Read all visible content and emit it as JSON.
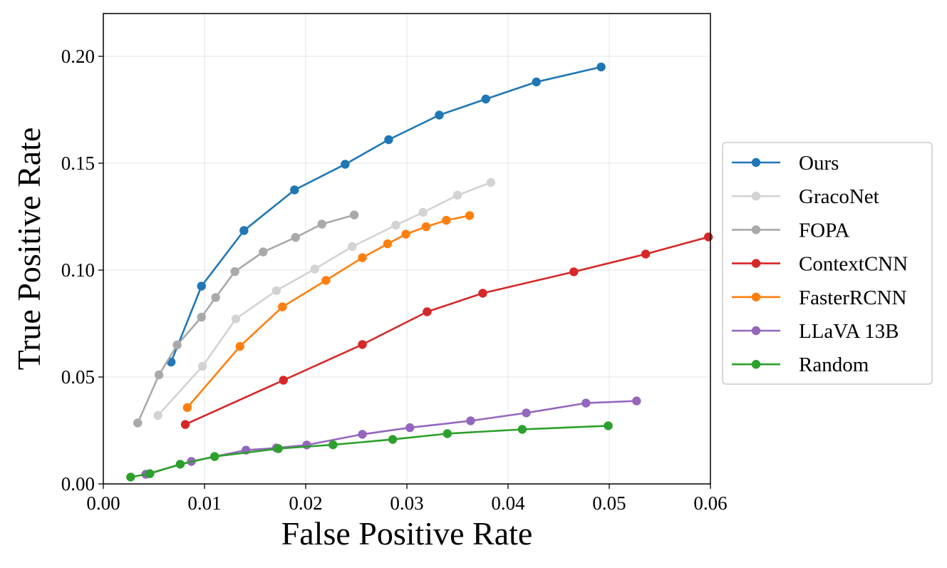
{
  "chart_data": {
    "type": "line",
    "title": "",
    "xlabel": "False Positive Rate",
    "ylabel": "True Positive Rate",
    "xlim": [
      0.0,
      0.06
    ],
    "ylim": [
      0.0,
      0.22
    ],
    "grid": true,
    "legend_position": "right-outside",
    "x_ticks": [
      0.0,
      0.01,
      0.02,
      0.03,
      0.04,
      0.05,
      0.06
    ],
    "x_tick_labels": [
      "0.00",
      "0.01",
      "0.02",
      "0.03",
      "0.04",
      "0.05",
      "0.06"
    ],
    "y_ticks": [
      0.0,
      0.05,
      0.1,
      0.15,
      0.2
    ],
    "y_tick_labels": [
      "0.00",
      "0.05",
      "0.10",
      "0.15",
      "0.20"
    ],
    "series": [
      {
        "name": "Ours",
        "color": "#1f77b4",
        "x": [
          0.0067,
          0.0097,
          0.0139,
          0.0189,
          0.0239,
          0.0282,
          0.0332,
          0.0378,
          0.0428,
          0.0492
        ],
        "y": [
          0.057,
          0.0925,
          0.1185,
          0.1375,
          0.1495,
          0.161,
          0.1725,
          0.18,
          0.188,
          0.195
        ]
      },
      {
        "name": "GracoNet",
        "color": "#d3d3d3",
        "x": [
          0.0054,
          0.0098,
          0.0131,
          0.0171,
          0.0209,
          0.0246,
          0.0289,
          0.0316,
          0.035,
          0.0383
        ],
        "y": [
          0.032,
          0.055,
          0.0772,
          0.0904,
          0.1005,
          0.111,
          0.121,
          0.127,
          0.135,
          0.141
        ]
      },
      {
        "name": "FOPA",
        "color": "#a9a9a9",
        "x": [
          0.0034,
          0.0055,
          0.0073,
          0.0097,
          0.0111,
          0.013,
          0.0158,
          0.019,
          0.0216,
          0.0248
        ],
        "y": [
          0.0285,
          0.051,
          0.065,
          0.078,
          0.0872,
          0.0993,
          0.1085,
          0.1153,
          0.1215,
          0.1258
        ]
      },
      {
        "name": "ContextCNN",
        "color": "#d62728",
        "x": [
          0.0081,
          0.0178,
          0.0256,
          0.032,
          0.0375,
          0.0465,
          0.0536,
          0.0598
        ],
        "y": [
          0.0278,
          0.0485,
          0.0652,
          0.0805,
          0.0892,
          0.0992,
          0.1075,
          0.1155
        ]
      },
      {
        "name": "FasterRCNN",
        "color": "#ff7f0e",
        "x": [
          0.0083,
          0.0135,
          0.0177,
          0.022,
          0.0256,
          0.0281,
          0.0299,
          0.0319,
          0.0339,
          0.0362
        ],
        "y": [
          0.0357,
          0.0643,
          0.0828,
          0.0952,
          0.1058,
          0.1123,
          0.1168,
          0.1203,
          0.1233,
          0.1255
        ]
      },
      {
        "name": "LLaVA 13B",
        "color": "#9467bd",
        "x": [
          0.0042,
          0.0087,
          0.0141,
          0.0171,
          0.0201,
          0.0256,
          0.0303,
          0.0363,
          0.0418,
          0.0477,
          0.0527
        ],
        "y": [
          0.0045,
          0.0105,
          0.0158,
          0.0168,
          0.0182,
          0.0232,
          0.0263,
          0.0295,
          0.0332,
          0.0378,
          0.0388
        ]
      },
      {
        "name": "Random",
        "color": "#2ca02c",
        "x": [
          0.0027,
          0.0046,
          0.0076,
          0.011,
          0.0173,
          0.0227,
          0.0286,
          0.034,
          0.0414,
          0.0499
        ],
        "y": [
          0.0032,
          0.0048,
          0.0092,
          0.0128,
          0.0165,
          0.0183,
          0.0208,
          0.0235,
          0.0255,
          0.0272
        ]
      }
    ]
  }
}
